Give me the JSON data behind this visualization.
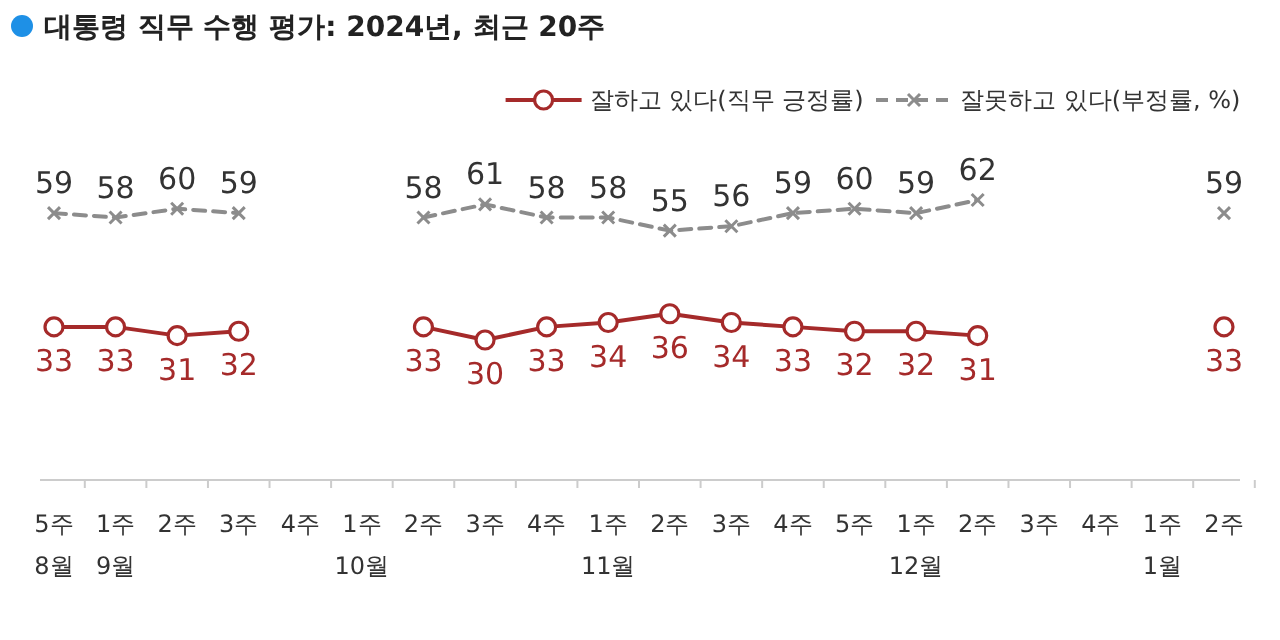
{
  "chart_data": {
    "type": "line",
    "title": "대통령 직무 수행 평가: 2024년, 최근 20주",
    "categories": [
      "5주\n8월",
      "1주\n9월",
      "2주",
      "3주",
      "4주",
      "1주\n10월",
      "2주",
      "3주",
      "4주",
      "1주\n11월",
      "2주",
      "3주",
      "4주",
      "5주",
      "1주\n12월",
      "2주",
      "3주",
      "4주",
      "1주\n1월",
      "2주"
    ],
    "series": [
      {
        "name": "잘하고 있다(직무 긍정률)",
        "color": "#a52a2a",
        "marker": "circle",
        "line_style": "solid",
        "values": [
          33,
          33,
          31,
          32,
          null,
          null,
          33,
          30,
          33,
          34,
          36,
          34,
          33,
          32,
          32,
          31,
          null,
          null,
          null,
          33
        ]
      },
      {
        "name": "잘못하고 있다(부정률, %)",
        "color": "#8c8c8c",
        "marker": "cross",
        "line_style": "dashed",
        "values": [
          59,
          58,
          60,
          59,
          null,
          null,
          58,
          61,
          58,
          58,
          55,
          56,
          59,
          60,
          59,
          62,
          null,
          null,
          null,
          59
        ]
      }
    ],
    "data_labels": true,
    "legend": "top right",
    "grid": false
  }
}
